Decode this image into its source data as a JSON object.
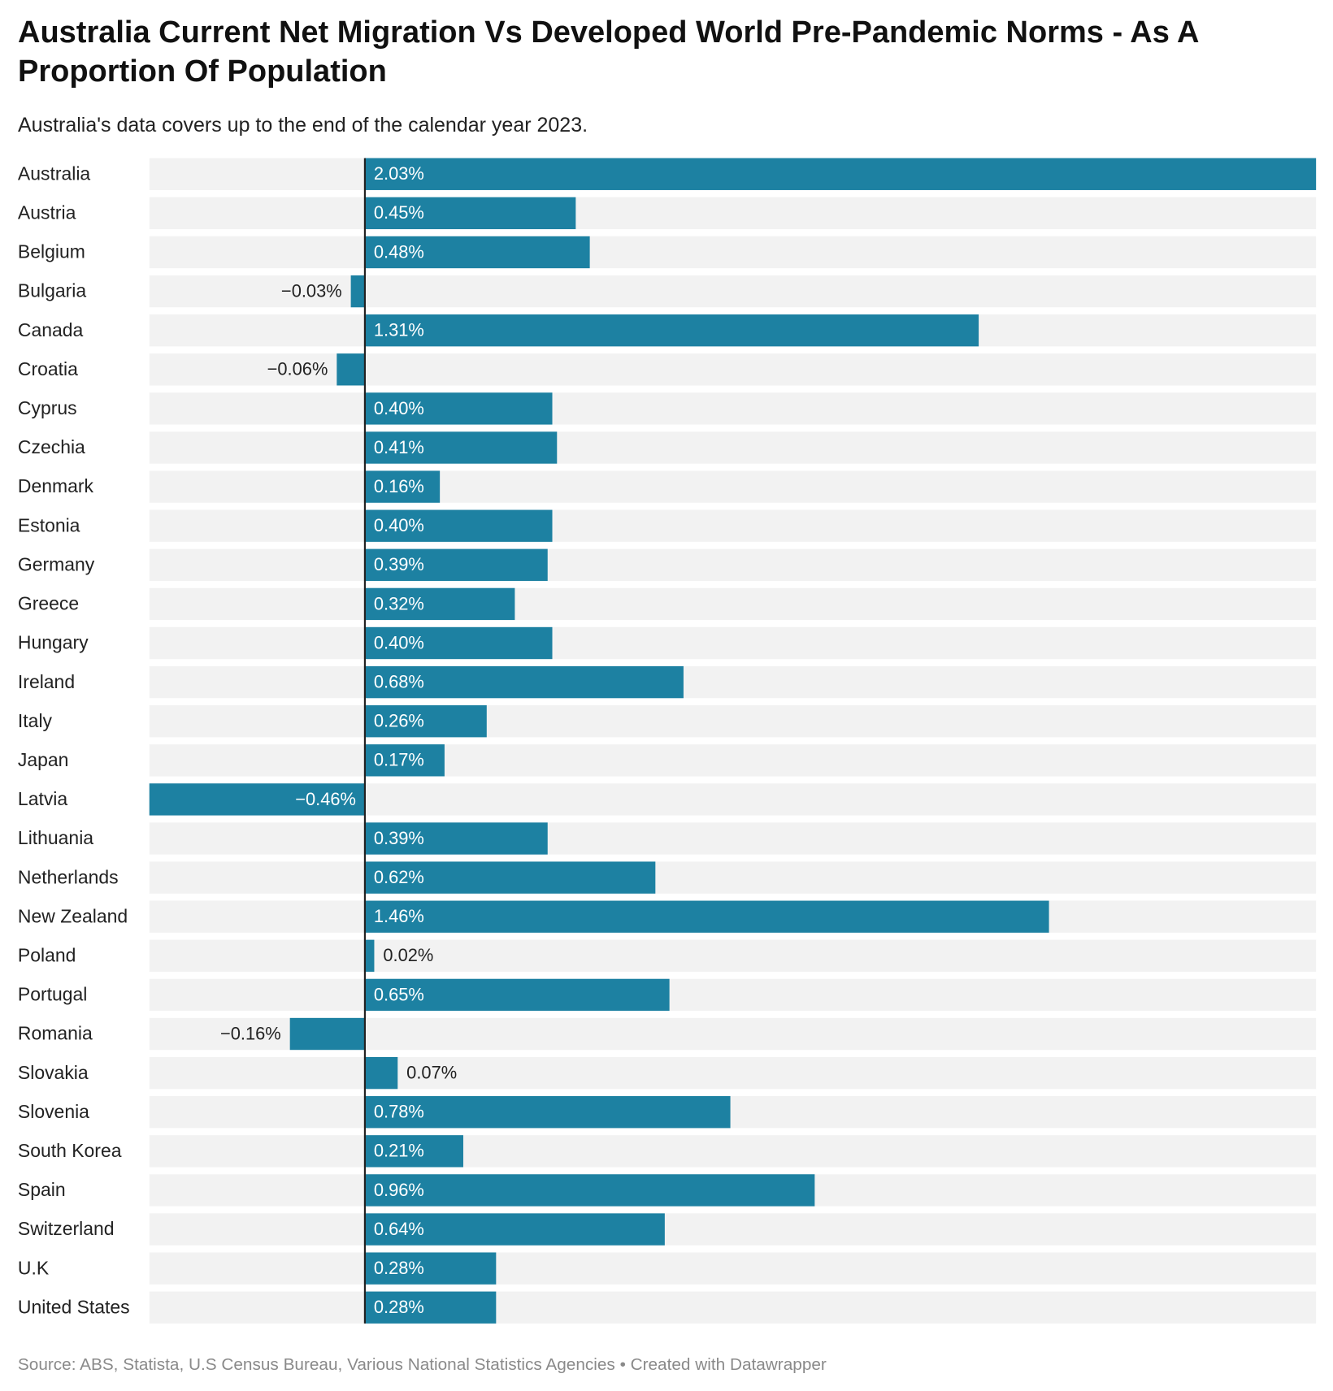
{
  "chart_data": {
    "type": "bar",
    "orientation": "horizontal",
    "title": "Australia Current Net Migration Vs Developed World Pre-Pandemic Norms - As A Proportion Of Population",
    "subtitle": "Australia's data covers up to the end of the calendar year 2023.",
    "source": "Source: ABS, Statista, U.S Census Bureau, Various National Statistics Agencies • Created with Datawrapper",
    "categories": [
      "Australia",
      "Austria",
      "Belgium",
      "Bulgaria",
      "Canada",
      "Croatia",
      "Cyprus",
      "Czechia",
      "Denmark",
      "Estonia",
      "Germany",
      "Greece",
      "Hungary",
      "Ireland",
      "Italy",
      "Japan",
      "Latvia",
      "Lithuania",
      "Netherlands",
      "New Zealand",
      "Poland",
      "Portugal",
      "Romania",
      "Slovakia",
      "Slovenia",
      "South Korea",
      "Spain",
      "Switzerland",
      "U.K",
      "United States"
    ],
    "values": [
      2.03,
      0.45,
      0.48,
      -0.03,
      1.31,
      -0.06,
      0.4,
      0.41,
      0.16,
      0.4,
      0.39,
      0.32,
      0.4,
      0.68,
      0.26,
      0.17,
      -0.46,
      0.39,
      0.62,
      1.46,
      0.02,
      0.65,
      -0.16,
      0.07,
      0.78,
      0.21,
      0.96,
      0.64,
      0.28,
      0.28
    ],
    "value_labels": [
      "2.03%",
      "0.45%",
      "0.48%",
      "−0.03%",
      "1.31%",
      "−0.06%",
      "0.40%",
      "0.41%",
      "0.16%",
      "0.40%",
      "0.39%",
      "0.32%",
      "0.40%",
      "0.68%",
      "0.26%",
      "0.17%",
      "−0.46%",
      "0.39%",
      "0.62%",
      "1.46%",
      "0.02%",
      "0.65%",
      "−0.16%",
      "0.07%",
      "0.78%",
      "0.21%",
      "0.96%",
      "0.64%",
      "0.28%",
      "0.28%"
    ],
    "color": "#1d81a2",
    "xlim": [
      -0.46,
      2.03
    ]
  }
}
